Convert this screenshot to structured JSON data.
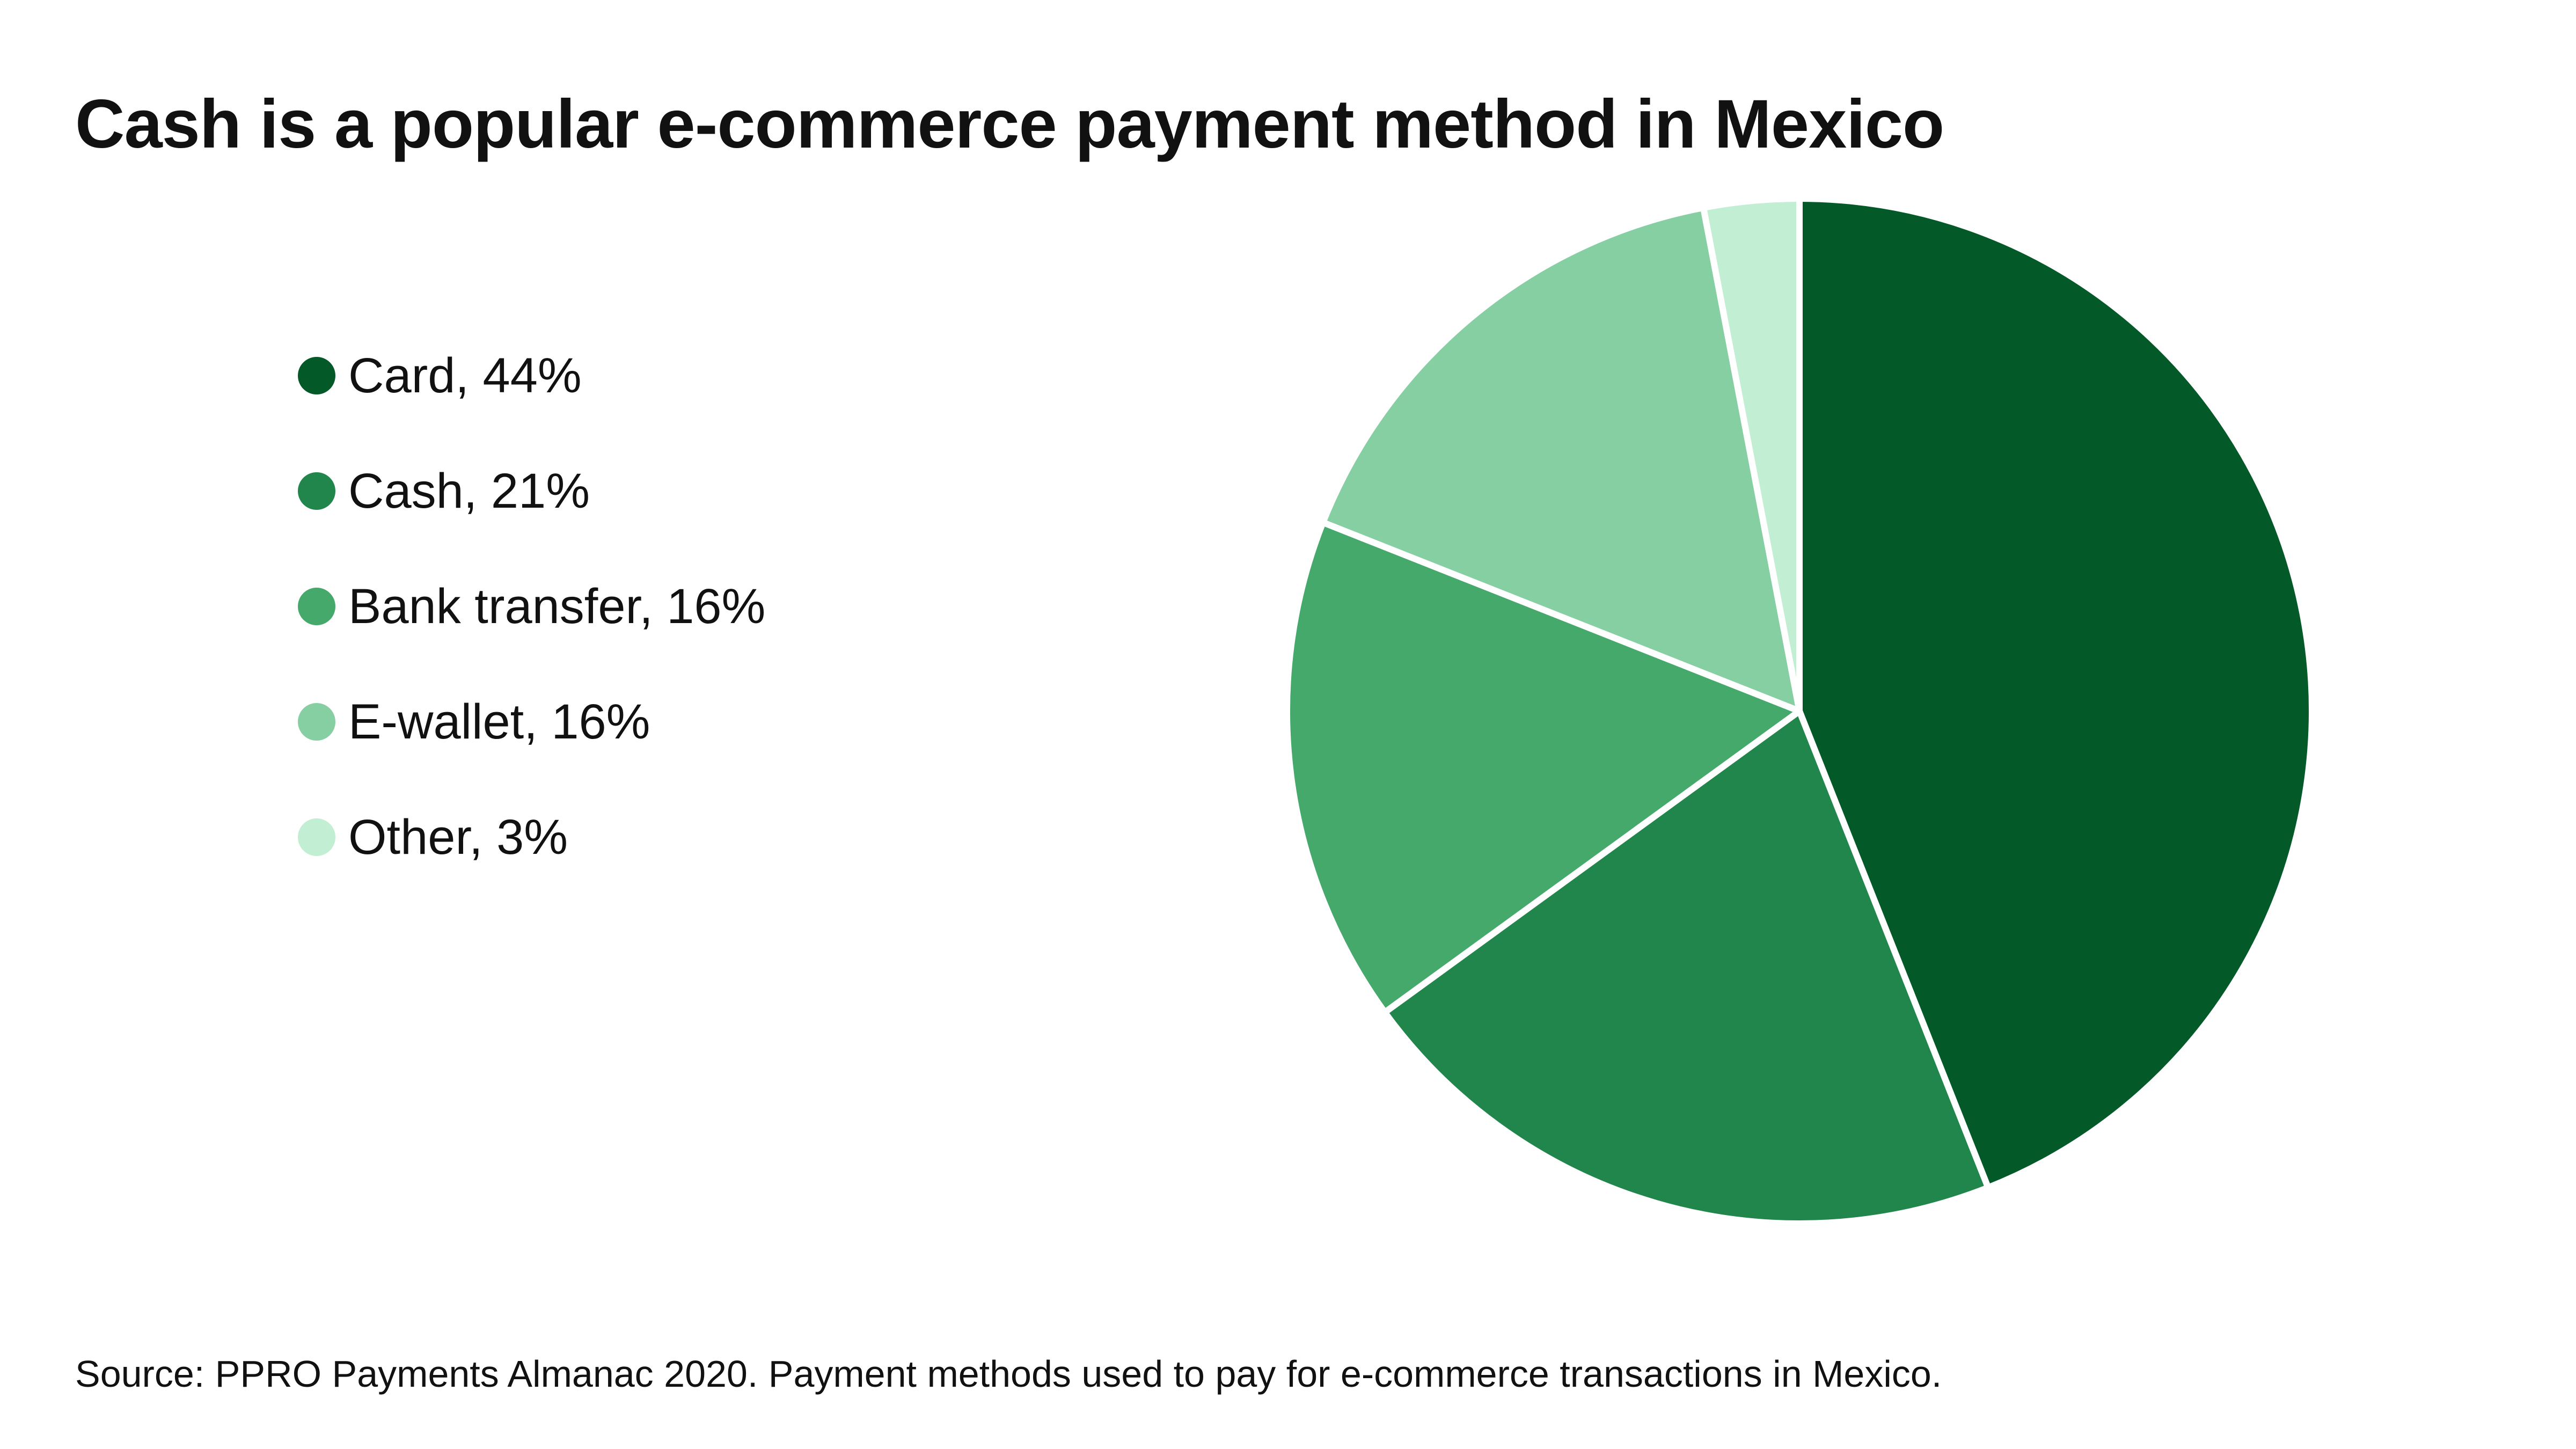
{
  "title": "Cash is a popular e-commerce payment method in Mexico",
  "source": "Source: PPRO Payments Almanac 2020. Payment methods used to pay for e-commerce transactions in Mexico.",
  "chart_data": {
    "type": "pie",
    "title": "Cash is a popular e-commerce payment method in Mexico",
    "legend_position": "left",
    "slices": [
      {
        "name": "Card",
        "value": 44,
        "label": "Card, 44%",
        "color": "#035a28"
      },
      {
        "name": "Cash",
        "value": 21,
        "label": "Cash, 21%",
        "color": "#21864b"
      },
      {
        "name": "Bank transfer",
        "value": 16,
        "label": "Bank transfer, 16%",
        "color": "#46a96c"
      },
      {
        "name": "E-wallet",
        "value": 16,
        "label": "E-wallet, 16%",
        "color": "#86cfa2"
      },
      {
        "name": "Other",
        "value": 3,
        "label": "Other, 3%",
        "color": "#c2eed3"
      }
    ]
  }
}
